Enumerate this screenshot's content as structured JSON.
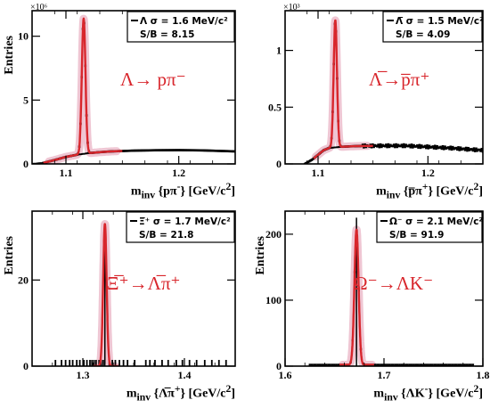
{
  "colors": {
    "fit": "#d8262c",
    "fit_band": "#e9b3c4",
    "data": "#000000",
    "background_fit": "#000000"
  },
  "chart_data": [
    {
      "type": "line",
      "ylabel": "Entries",
      "xlabel_html": "m<sub>inv</sub> {pπ<sup>-</sup>} [GeV/c<sup>2</sup>]",
      "xlabel": "minv {pπ-} [GeV/c2]",
      "exponent": "×10⁶",
      "xlim": [
        1.07,
        1.25
      ],
      "ylim": [
        0,
        12
      ],
      "xticks": [
        1.1,
        1.2
      ],
      "xtick_labels": [
        "1.1",
        "1.2"
      ],
      "yticks": [
        0,
        5,
        10
      ],
      "ytick_labels": [
        "0",
        "5",
        "10"
      ],
      "reaction": "Λ→ pπ⁻",
      "legend_sigma": "Λ  σ = 1.6 MeV/c²",
      "legend_sb": "S/B = 8.15",
      "peak": {
        "center": 1.1157,
        "amplitude": 10.6,
        "width": 0.0016
      },
      "background": {
        "x": [
          1.07,
          1.08,
          1.09,
          1.1,
          1.11,
          1.12,
          1.13,
          1.14,
          1.16,
          1.18,
          1.2,
          1.22,
          1.25
        ],
        "y": [
          0.0,
          0.08,
          0.3,
          0.55,
          0.72,
          0.84,
          0.92,
          0.98,
          1.04,
          1.07,
          1.08,
          1.06,
          0.98
        ]
      },
      "fit_range": [
        1.08,
        1.15
      ],
      "fit_band": [
        1.085,
        1.145
      ]
    },
    {
      "type": "line",
      "ylabel": "",
      "xlabel_html": "m<sub>inv</sub> {p̅π<sup>+</sup>} [GeV/c<sup>2</sup>]",
      "xlabel": "minv {p̄π+} [GeV/c2]",
      "exponent": "×10³",
      "xlim": [
        1.07,
        1.25
      ],
      "ylim": [
        0,
        1.35
      ],
      "xticks": [
        1.1,
        1.2
      ],
      "xtick_labels": [
        "1.1",
        "1.2"
      ],
      "yticks": [
        0,
        0.5,
        1.0
      ],
      "ytick_labels": [
        "0",
        "0.5",
        "1"
      ],
      "reaction": "Λ̅→p̅π⁺",
      "legend_sigma": "Λ̅  σ = 1.5 MeV/c²",
      "legend_sb": "S/B = 4.09",
      "peak": {
        "center": 1.1157,
        "amplitude": 1.12,
        "width": 0.0015
      },
      "background": {
        "x": [
          1.088,
          1.095,
          1.1,
          1.105,
          1.11,
          1.12,
          1.13,
          1.14,
          1.16,
          1.18,
          1.2,
          1.22,
          1.25
        ],
        "y": [
          0.0,
          0.04,
          0.08,
          0.12,
          0.14,
          0.15,
          0.155,
          0.158,
          0.16,
          0.16,
          0.15,
          0.14,
          0.12
        ]
      },
      "fit_range": [
        1.096,
        1.15
      ],
      "fit_band": [
        1.098,
        1.145
      ]
    },
    {
      "type": "line",
      "ylabel": "Entries",
      "xlabel_html": "m<sub>inv</sub> {Λ̅π<sup>+</sup>} [GeV/c<sup>2</sup>]",
      "xlabel": "minv {Λ̄π+} [GeV/c2]",
      "exponent": "",
      "xlim": [
        1.25,
        1.45
      ],
      "ylim": [
        0,
        36
      ],
      "xticks": [
        1.3,
        1.4
      ],
      "xtick_labels": [
        "1.3",
        "1.4"
      ],
      "yticks": [
        0,
        20
      ],
      "ytick_labels": [
        "0",
        "20"
      ],
      "reaction": "Ξ̅⁺→Λ̅π⁺",
      "legend_sigma": "Ξ̅⁺  σ = 1.7 MeV/c²",
      "legend_sb": "S/B = 21.8",
      "peak": {
        "center": 1.3217,
        "amplitude": 33,
        "width": 0.0017
      },
      "background": {
        "x": [
          1.25,
          1.45
        ],
        "y": [
          0,
          0
        ]
      },
      "fit_range": [
        1.31,
        1.335
      ],
      "fit_band": [
        1.312,
        1.332
      ]
    },
    {
      "type": "line",
      "ylabel": "Entries",
      "xlabel_html": "m<sub>inv</sub> {ΛK<sup>-</sup>} [GeV/c<sup>2</sup>]",
      "xlabel": "minv {ΛK-} [GeV/c2]",
      "exponent": "",
      "xlim": [
        1.6,
        1.8
      ],
      "ylim": [
        0,
        235
      ],
      "xticks": [
        1.6,
        1.7,
        1.8
      ],
      "xtick_labels": [
        "1.6",
        "1.7",
        "1.8"
      ],
      "yticks": [
        0,
        100,
        200
      ],
      "ytick_labels": [
        "0",
        "100",
        "200"
      ],
      "reaction": "Ω⁻→ΛK⁻",
      "legend_sigma": "Ω⁻  σ = 2.1 MeV/c²",
      "legend_sb": "S/B = 91.9",
      "peak": {
        "center": 1.6722,
        "amplitude": 205,
        "width": 0.0021
      },
      "data_peak_max": 225,
      "background": {
        "x": [
          1.6,
          1.8
        ],
        "y": [
          2,
          2
        ]
      },
      "fit_range": [
        1.655,
        1.69
      ],
      "fit_band": [
        1.658,
        1.688
      ]
    }
  ]
}
